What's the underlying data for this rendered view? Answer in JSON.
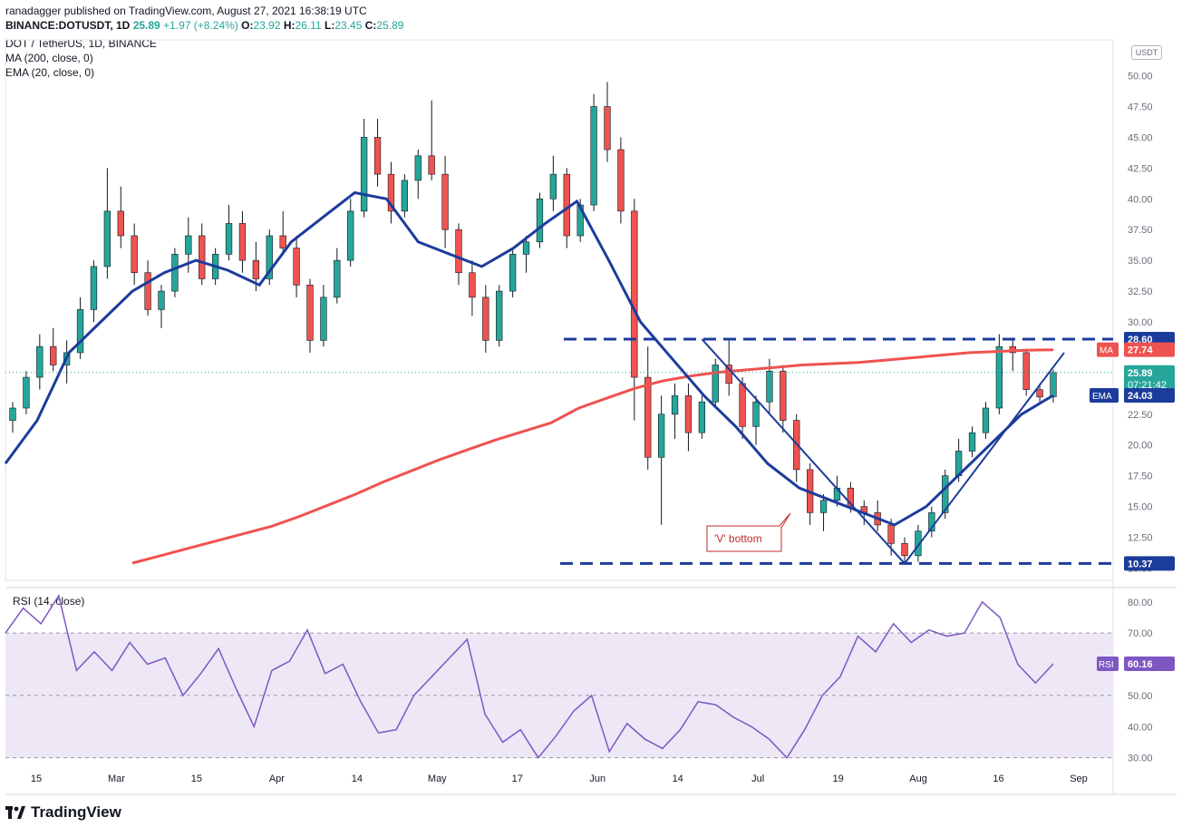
{
  "header": {
    "published": "ranadagger published on TradingView.com, August 27, 2021 16:38:19 UTC",
    "symbol": "BINANCE:DOTUSDT, 1D",
    "last": "25.89",
    "change": "+1.97 (+8.24%)",
    "o_label": "O:",
    "o_value": "23.92",
    "h_label": "H:",
    "h_value": "26.11",
    "l_label": "L:",
    "l_value": "23.45",
    "c_label": "C:",
    "c_value": "25.89",
    "pair": "DOT / TetherUS, 1D, BINANCE",
    "ma_label": "MA (200, close, 0)",
    "ema_label": "EMA (20, close, 0)",
    "rsi_label": "RSI (14, close)"
  },
  "currency_badge": "USDT",
  "footer": {
    "brand": "TradingView",
    "logo": "tradingview-logo"
  },
  "colors": {
    "up": "#26a69a",
    "down": "#ef5350",
    "ma": "#ef5350",
    "ema": "#1c3c9c",
    "rsi": "#7e57c2",
    "trend": "#1c3c9c",
    "rsi_band": "#ede7f6"
  },
  "chart_data": [
    {
      "type": "candlestick",
      "title": "DOT / TetherUS, 1D, BINANCE",
      "x_ticks": [
        "15",
        "Mar",
        "15",
        "Apr",
        "14",
        "May",
        "17",
        "Jun",
        "14",
        "Jul",
        "19",
        "Aug",
        "16",
        "Sep"
      ],
      "y_ticks": [
        "50.00",
        "47.50",
        "45.00",
        "42.50",
        "40.00",
        "37.50",
        "35.00",
        "32.50",
        "30.00",
        "27.50",
        "25.00",
        "22.50",
        "20.00",
        "17.50",
        "15.00",
        "12.50",
        "10.00"
      ],
      "ylim": [
        9,
        51
      ],
      "series": [
        {
          "name": "MA",
          "label": "27.74",
          "values": [
            10.4,
            11.0,
            11.6,
            12.2,
            12.8,
            13.4,
            14.2,
            15.1,
            16.0,
            17.0,
            17.9,
            18.8,
            19.6,
            20.4,
            21.1,
            21.8,
            23.0,
            23.8,
            24.6,
            25.2,
            25.6,
            25.9,
            26.1,
            26.3,
            26.5,
            26.6,
            26.7,
            26.9,
            27.1,
            27.3,
            27.5,
            27.6,
            27.7,
            27.74
          ]
        },
        {
          "name": "EMA",
          "label": "24.03",
          "values": [
            18.5,
            22.0,
            27.5,
            30.0,
            32.5,
            34.0,
            35.0,
            34.2,
            33.0,
            36.5,
            38.5,
            40.5,
            40.0,
            36.5,
            35.5,
            34.5,
            36.0,
            38.0,
            39.8,
            35.0,
            30.0,
            27.0,
            24.0,
            21.5,
            18.5,
            16.5,
            15.5,
            14.5,
            13.5,
            15.0,
            17.5,
            20.0,
            22.5,
            24.03
          ]
        }
      ],
      "candles": [
        {
          "o": 22.0,
          "h": 23.5,
          "l": 21.0,
          "c": 23.0
        },
        {
          "o": 23.0,
          "h": 26.0,
          "l": 22.5,
          "c": 25.5
        },
        {
          "o": 25.5,
          "h": 29.0,
          "l": 24.5,
          "c": 28.0
        },
        {
          "o": 28.0,
          "h": 29.5,
          "l": 26.0,
          "c": 26.5
        },
        {
          "o": 26.5,
          "h": 28.5,
          "l": 25.0,
          "c": 27.5
        },
        {
          "o": 27.5,
          "h": 32.0,
          "l": 27.0,
          "c": 31.0
        },
        {
          "o": 31.0,
          "h": 35.0,
          "l": 30.0,
          "c": 34.5
        },
        {
          "o": 34.5,
          "h": 42.5,
          "l": 33.5,
          "c": 39.0
        },
        {
          "o": 39.0,
          "h": 41.0,
          "l": 36.0,
          "c": 37.0
        },
        {
          "o": 37.0,
          "h": 38.0,
          "l": 33.0,
          "c": 34.0
        },
        {
          "o": 34.0,
          "h": 35.0,
          "l": 30.5,
          "c": 31.0
        },
        {
          "o": 31.0,
          "h": 33.0,
          "l": 29.5,
          "c": 32.5
        },
        {
          "o": 32.5,
          "h": 36.0,
          "l": 32.0,
          "c": 35.5
        },
        {
          "o": 35.5,
          "h": 38.5,
          "l": 34.0,
          "c": 37.0
        },
        {
          "o": 37.0,
          "h": 38.0,
          "l": 33.0,
          "c": 33.5
        },
        {
          "o": 33.5,
          "h": 36.0,
          "l": 33.0,
          "c": 35.5
        },
        {
          "o": 35.5,
          "h": 39.5,
          "l": 35.0,
          "c": 38.0
        },
        {
          "o": 38.0,
          "h": 39.0,
          "l": 34.0,
          "c": 35.0
        },
        {
          "o": 35.0,
          "h": 36.5,
          "l": 32.5,
          "c": 33.5
        },
        {
          "o": 33.5,
          "h": 37.5,
          "l": 33.0,
          "c": 37.0
        },
        {
          "o": 37.0,
          "h": 39.0,
          "l": 35.5,
          "c": 36.0
        },
        {
          "o": 36.0,
          "h": 37.0,
          "l": 32.0,
          "c": 33.0
        },
        {
          "o": 33.0,
          "h": 33.5,
          "l": 27.5,
          "c": 28.5
        },
        {
          "o": 28.5,
          "h": 33.0,
          "l": 28.0,
          "c": 32.0
        },
        {
          "o": 32.0,
          "h": 36.0,
          "l": 31.5,
          "c": 35.0
        },
        {
          "o": 35.0,
          "h": 40.0,
          "l": 34.5,
          "c": 39.0
        },
        {
          "o": 39.0,
          "h": 46.5,
          "l": 38.5,
          "c": 45.0
        },
        {
          "o": 45.0,
          "h": 46.5,
          "l": 41.0,
          "c": 42.0
        },
        {
          "o": 42.0,
          "h": 43.0,
          "l": 38.0,
          "c": 39.0
        },
        {
          "o": 39.0,
          "h": 42.0,
          "l": 38.5,
          "c": 41.5
        },
        {
          "o": 41.5,
          "h": 44.0,
          "l": 40.0,
          "c": 43.5
        },
        {
          "o": 43.5,
          "h": 48.0,
          "l": 41.5,
          "c": 42.0
        },
        {
          "o": 42.0,
          "h": 43.5,
          "l": 36.0,
          "c": 37.5
        },
        {
          "o": 37.5,
          "h": 38.0,
          "l": 33.0,
          "c": 34.0
        },
        {
          "o": 34.0,
          "h": 35.0,
          "l": 30.5,
          "c": 32.0
        },
        {
          "o": 32.0,
          "h": 33.0,
          "l": 27.5,
          "c": 28.5
        },
        {
          "o": 28.5,
          "h": 33.0,
          "l": 28.0,
          "c": 32.5
        },
        {
          "o": 32.5,
          "h": 36.0,
          "l": 32.0,
          "c": 35.5
        },
        {
          "o": 35.5,
          "h": 37.0,
          "l": 34.0,
          "c": 36.5
        },
        {
          "o": 36.5,
          "h": 40.5,
          "l": 36.0,
          "c": 40.0
        },
        {
          "o": 40.0,
          "h": 43.5,
          "l": 39.0,
          "c": 42.0
        },
        {
          "o": 42.0,
          "h": 42.5,
          "l": 36.0,
          "c": 37.0
        },
        {
          "o": 37.0,
          "h": 40.0,
          "l": 36.5,
          "c": 39.5
        },
        {
          "o": 39.5,
          "h": 48.5,
          "l": 39.0,
          "c": 47.5
        },
        {
          "o": 47.5,
          "h": 49.5,
          "l": 43.0,
          "c": 44.0
        },
        {
          "o": 44.0,
          "h": 45.0,
          "l": 38.0,
          "c": 39.0
        },
        {
          "o": 39.0,
          "h": 40.0,
          "l": 22.0,
          "c": 25.5
        },
        {
          "o": 25.5,
          "h": 28.0,
          "l": 18.0,
          "c": 19.0
        },
        {
          "o": 19.0,
          "h": 24.0,
          "l": 13.5,
          "c": 22.5
        },
        {
          "o": 22.5,
          "h": 25.0,
          "l": 20.5,
          "c": 24.0
        },
        {
          "o": 24.0,
          "h": 25.0,
          "l": 19.5,
          "c": 21.0
        },
        {
          "o": 21.0,
          "h": 24.0,
          "l": 20.5,
          "c": 23.5
        },
        {
          "o": 23.5,
          "h": 27.0,
          "l": 23.0,
          "c": 26.5
        },
        {
          "o": 26.5,
          "h": 28.5,
          "l": 24.0,
          "c": 25.0
        },
        {
          "o": 25.0,
          "h": 25.5,
          "l": 20.5,
          "c": 21.5
        },
        {
          "o": 21.5,
          "h": 24.0,
          "l": 20.0,
          "c": 23.5
        },
        {
          "o": 23.5,
          "h": 27.0,
          "l": 22.5,
          "c": 26.0
        },
        {
          "o": 26.0,
          "h": 26.5,
          "l": 21.0,
          "c": 22.0
        },
        {
          "o": 22.0,
          "h": 22.5,
          "l": 17.0,
          "c": 18.0
        },
        {
          "o": 18.0,
          "h": 18.5,
          "l": 13.5,
          "c": 14.5
        },
        {
          "o": 14.5,
          "h": 16.0,
          "l": 13.0,
          "c": 15.5
        },
        {
          "o": 15.5,
          "h": 17.5,
          "l": 15.0,
          "c": 16.5
        },
        {
          "o": 16.5,
          "h": 17.0,
          "l": 14.5,
          "c": 15.0
        },
        {
          "o": 15.0,
          "h": 15.5,
          "l": 13.5,
          "c": 14.5
        },
        {
          "o": 14.5,
          "h": 15.5,
          "l": 13.0,
          "c": 13.5
        },
        {
          "o": 13.5,
          "h": 14.0,
          "l": 11.0,
          "c": 12.0
        },
        {
          "o": 12.0,
          "h": 12.5,
          "l": 10.4,
          "c": 11.0
        },
        {
          "o": 11.0,
          "h": 13.5,
          "l": 10.5,
          "c": 13.0
        },
        {
          "o": 13.0,
          "h": 15.0,
          "l": 12.5,
          "c": 14.5
        },
        {
          "o": 14.5,
          "h": 18.0,
          "l": 14.0,
          "c": 17.5
        },
        {
          "o": 17.5,
          "h": 20.5,
          "l": 17.0,
          "c": 19.5
        },
        {
          "o": 19.5,
          "h": 21.5,
          "l": 19.0,
          "c": 21.0
        },
        {
          "o": 21.0,
          "h": 23.5,
          "l": 20.5,
          "c": 23.0
        },
        {
          "o": 23.0,
          "h": 29.0,
          "l": 22.5,
          "c": 28.0
        },
        {
          "o": 28.0,
          "h": 28.5,
          "l": 26.0,
          "c": 27.5
        },
        {
          "o": 27.5,
          "h": 27.7,
          "l": 24.0,
          "c": 24.5
        },
        {
          "o": 24.5,
          "h": 25.0,
          "l": 23.5,
          "c": 23.9
        },
        {
          "o": 23.92,
          "h": 26.11,
          "l": 23.45,
          "c": 25.89
        }
      ],
      "horizontal_levels": [
        {
          "label": "28.60",
          "value": 28.6
        },
        {
          "label": "10.37",
          "value": 10.37
        }
      ],
      "price_tags": [
        {
          "name": "MA",
          "label": "27.74"
        },
        {
          "name": "last",
          "label": "25.89",
          "timer": "07:21:42"
        },
        {
          "name": "EMA",
          "label": "24.03"
        }
      ],
      "annotation": "'V' bottom"
    },
    {
      "type": "line",
      "title": "RSI (14, close)",
      "y_ticks": [
        "80.00",
        "70.00",
        "60.00",
        "50.00",
        "40.00",
        "30.00"
      ],
      "ylim": [
        27,
        84
      ],
      "band": [
        30,
        70
      ],
      "series": [
        {
          "name": "RSI",
          "label": "60.16",
          "values": [
            70,
            78,
            73,
            82,
            58,
            64,
            58,
            67,
            60,
            62,
            50,
            57,
            65,
            52,
            40,
            58,
            61,
            71,
            57,
            60,
            48,
            38,
            39,
            50,
            56,
            62,
            68,
            44,
            35,
            39,
            30,
            37,
            45,
            50,
            32,
            41,
            36,
            33,
            39,
            48,
            47,
            43,
            40,
            36,
            30,
            39,
            50,
            56,
            69,
            64,
            73,
            67,
            71,
            69,
            70,
            80,
            75,
            60,
            54,
            60.16
          ]
        }
      ]
    }
  ]
}
